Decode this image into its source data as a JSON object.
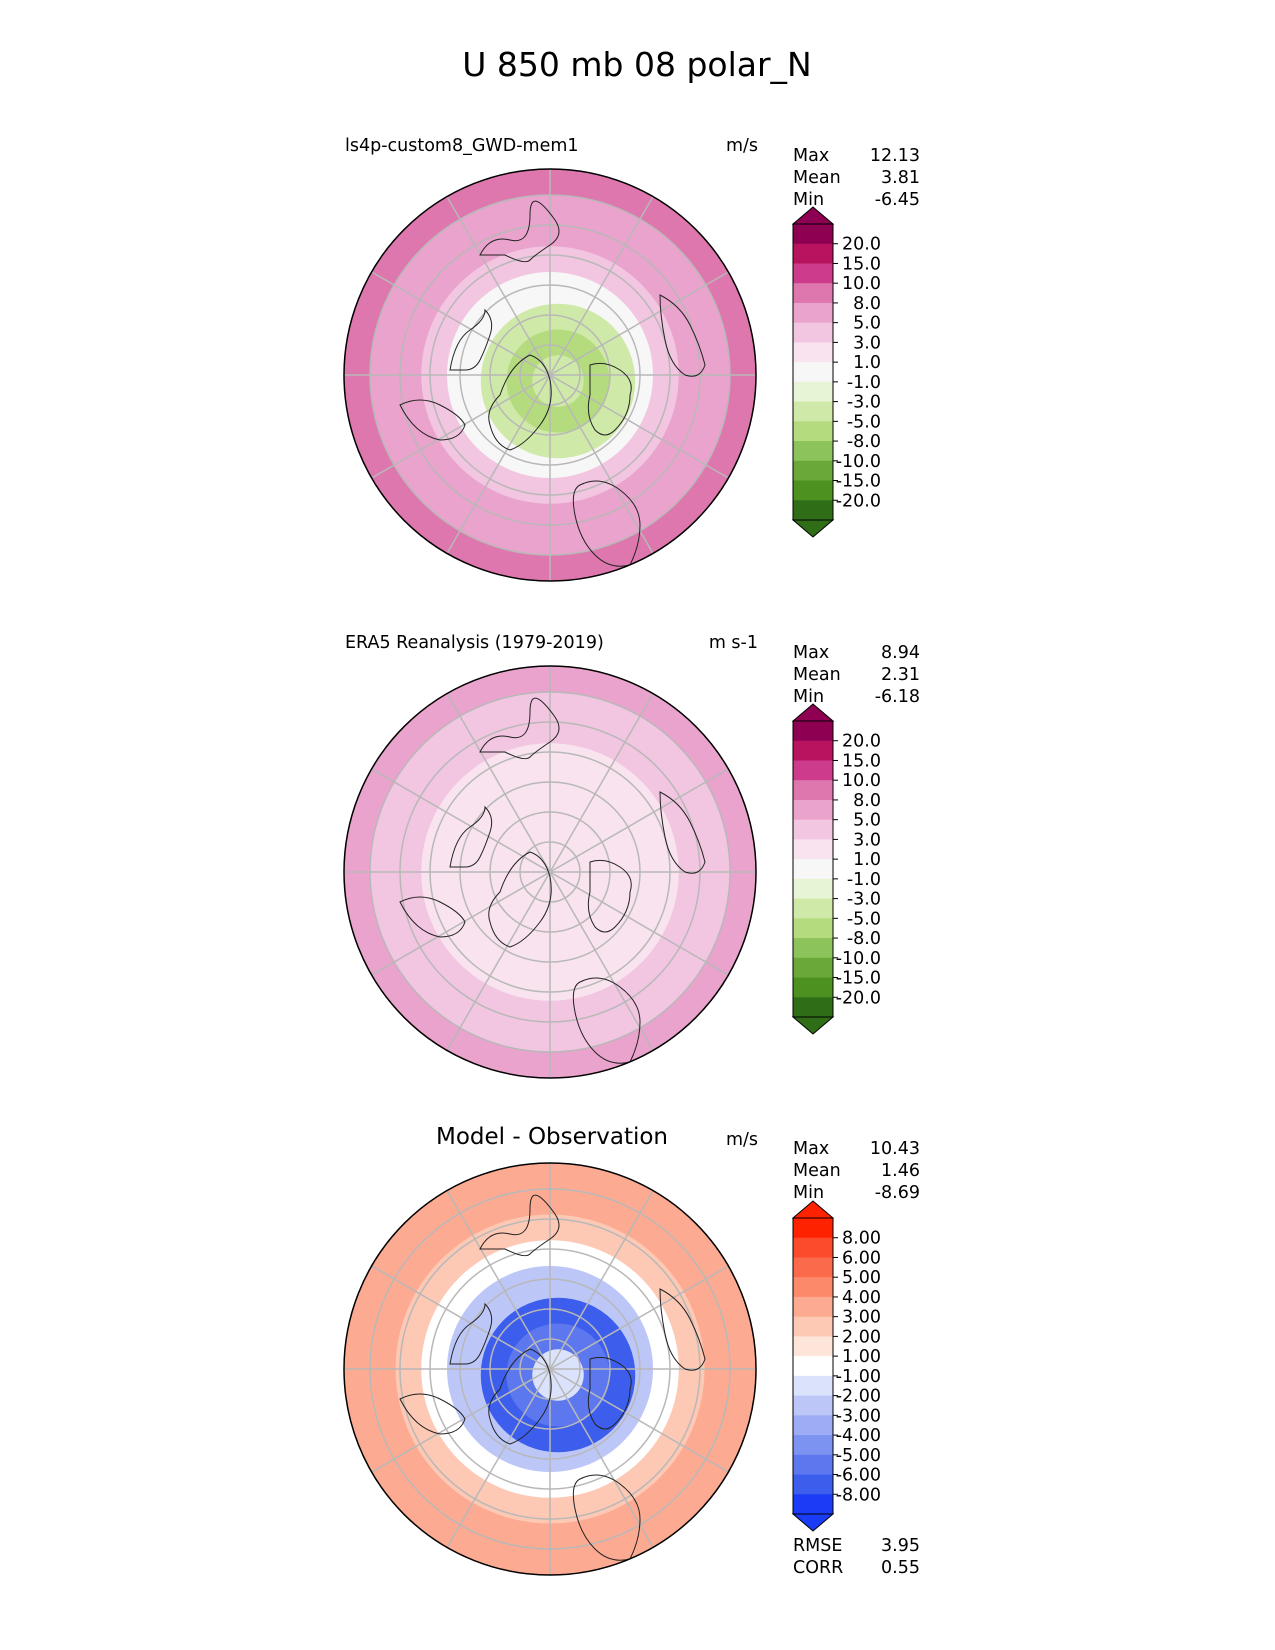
{
  "figure_title": "U 850 mb 08 polar_N",
  "chart_data": [
    {
      "type": "heatmap",
      "projection": "polar_N",
      "title": "ls4p-custom8_GWD-mem1",
      "units": "m/s",
      "stats": [
        {
          "label": "Max",
          "value": "12.13"
        },
        {
          "label": "Mean",
          "value": "3.81"
        },
        {
          "label": "Min",
          "value": "-6.45"
        }
      ],
      "colorbar": {
        "ticks": [
          "20.0",
          "15.0",
          "10.0",
          "8.0",
          "5.0",
          "3.0",
          "1.0",
          "-1.0",
          "-3.0",
          "-5.0",
          "-8.0",
          "-10.0",
          "-15.0",
          "-20.0"
        ],
        "colors": [
          "#8e0152",
          "#b7135f",
          "#cc3b8c",
          "#de77ae",
          "#eaa3cc",
          "#f2c6e0",
          "#f8e3ef",
          "#f7f7f7",
          "#e7f4d5",
          "#cfe9a9",
          "#b4dc7f",
          "#8dc35b",
          "#6aa83a",
          "#4d9221",
          "#2f6e17"
        ],
        "extend": "both"
      },
      "field": {
        "polar_mean": -4,
        "ring_values": [
          -4,
          -5,
          -3,
          0,
          4,
          6,
          7,
          9
        ]
      }
    },
    {
      "type": "heatmap",
      "projection": "polar_N",
      "title": "ERA5 Reanalysis (1979-2019)",
      "units": "m s-1",
      "stats": [
        {
          "label": "Max",
          "value": "8.94"
        },
        {
          "label": "Mean",
          "value": "2.31"
        },
        {
          "label": "Min",
          "value": "-6.18"
        }
      ],
      "colorbar": {
        "ticks": [
          "20.0",
          "15.0",
          "10.0",
          "8.0",
          "5.0",
          "3.0",
          "1.0",
          "-1.0",
          "-3.0",
          "-5.0",
          "-8.0",
          "-10.0",
          "-15.0",
          "-20.0"
        ],
        "colors": [
          "#8e0152",
          "#b7135f",
          "#cc3b8c",
          "#de77ae",
          "#eaa3cc",
          "#f2c6e0",
          "#f8e3ef",
          "#f7f7f7",
          "#e7f4d5",
          "#cfe9a9",
          "#b4dc7f",
          "#8dc35b",
          "#6aa83a",
          "#4d9221",
          "#2f6e17"
        ],
        "extend": "both"
      },
      "field": {
        "polar_mean": 1.5,
        "ring_values": [
          1.5,
          2,
          2,
          3,
          3,
          4,
          5,
          6
        ]
      }
    },
    {
      "type": "heatmap",
      "projection": "polar_N",
      "title": "Model - Observation",
      "units": "m/s",
      "stats": [
        {
          "label": "Max",
          "value": "10.43"
        },
        {
          "label": "Mean",
          "value": "1.46"
        },
        {
          "label": "Min",
          "value": "-8.69"
        }
      ],
      "extra_stats": [
        {
          "label": "RMSE",
          "value": "3.95"
        },
        {
          "label": "CORR",
          "value": "0.55"
        }
      ],
      "colorbar": {
        "ticks": [
          "8.00",
          "6.00",
          "5.00",
          "4.00",
          "3.00",
          "2.00",
          "1.00",
          "-1.00",
          "-2.00",
          "-3.00",
          "-4.00",
          "-5.00",
          "-6.00",
          "-8.00"
        ],
        "colors": [
          "#ff2200",
          "#fb4a2c",
          "#fb6a4a",
          "#fc8a6a",
          "#fcab92",
          "#fdc9b4",
          "#fee5da",
          "#ffffff",
          "#dbe2fb",
          "#bcc7f8",
          "#9cadf5",
          "#7c93f2",
          "#5d78ef",
          "#3d5eec",
          "#1b3cf7"
        ],
        "extend": "both"
      },
      "field": {
        "polar_mean": -1,
        "ring_values": [
          -1,
          -5,
          -6,
          -2,
          1,
          3,
          4,
          4
        ]
      }
    }
  ]
}
